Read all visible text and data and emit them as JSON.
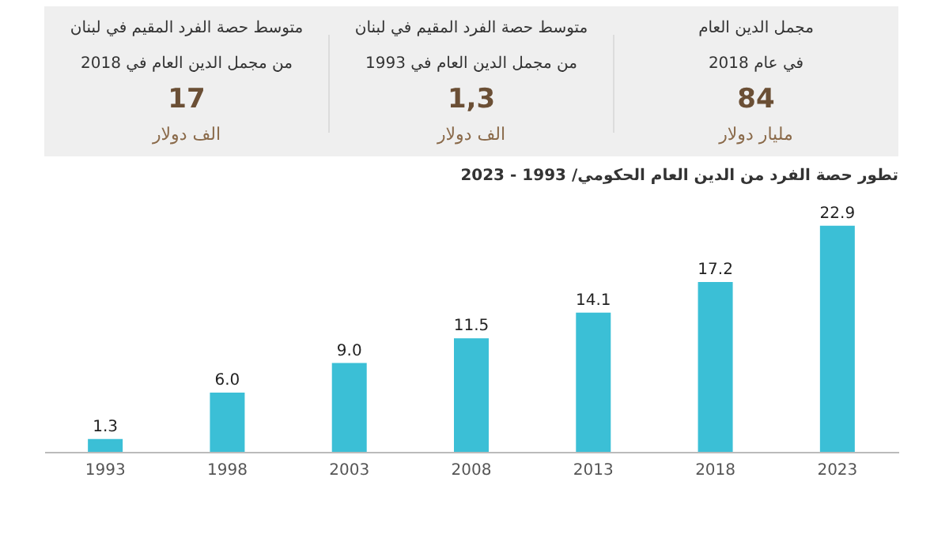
{
  "chart_data": [
    {
      "type": "other",
      "annotations": [
        "مجمل الدين العام",
        "في عام 2018",
        "84",
        "مليار دولار",
        "متوسط حصة الفرد المقيم في لبنان",
        "من مجمل الدين العام في 1993",
        "1,3",
        "الف دولار",
        "متوسط حصة الفرد المقيم في لبنان",
        "من مجمل الدين العام في 2018",
        "17",
        "الف دولار"
      ]
    },
    {
      "type": "bar",
      "title": "تطور حصة الفرد من الدين العام الحكومي/ 1993 - 2023",
      "categories": [
        "1993",
        "1998",
        "2003",
        "2008",
        "2013",
        "2018",
        "2023"
      ],
      "values": [
        1.3,
        6.0,
        9.0,
        11.5,
        14.1,
        17.2,
        22.9
      ],
      "color": "#3bbfd6",
      "value_labels": [
        "1.3",
        "6.0",
        "9.0",
        "11.5",
        "14.1",
        "17.2",
        "22.9"
      ],
      "grid": false,
      "legend": false
    }
  ]
}
